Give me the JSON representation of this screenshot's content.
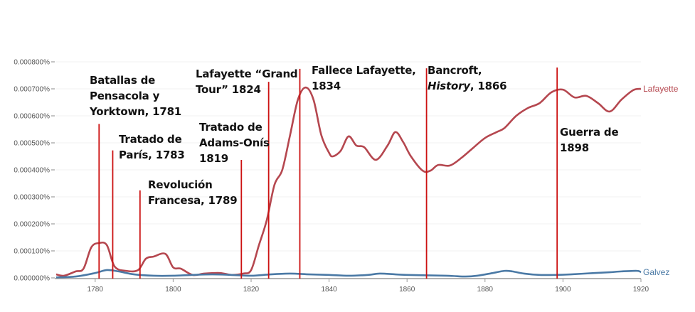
{
  "chart_data": {
    "type": "line",
    "title": "",
    "xlabel": "",
    "ylabel": "",
    "xlim": [
      1770,
      1920
    ],
    "ylim": [
      0,
      0.0008
    ],
    "grid": true,
    "x_ticks": [
      "1780",
      "1800",
      "1820",
      "1840",
      "1860",
      "1880",
      "1900",
      "1920"
    ],
    "x_tick_values": [
      1780,
      1800,
      1820,
      1840,
      1860,
      1880,
      1900,
      1920
    ],
    "y_ticks": [
      "0.000000%",
      "0.000100%",
      "0.000200%",
      "0.000300%",
      "0.000400%",
      "0.000500%",
      "0.000600%",
      "0.000700%",
      "0.000800%"
    ],
    "y_tick_values": [
      0,
      0.0001,
      0.0002,
      0.0003,
      0.0004,
      0.0005,
      0.0006,
      0.0007,
      0.0008
    ],
    "legend_placement": "line-end labels (right)",
    "series": [
      {
        "name": "Lafayette",
        "color": "#b5474f",
        "points": [
          [
            1770,
            1.3e-05
          ],
          [
            1772,
            8e-06
          ],
          [
            1775,
            2.4e-05
          ],
          [
            1777,
            3.4e-05
          ],
          [
            1779,
            0.000113
          ],
          [
            1781,
            0.000129
          ],
          [
            1783,
            0.000121
          ],
          [
            1785,
            4.2e-05
          ],
          [
            1788,
            2.6e-05
          ],
          [
            1791,
            2.9e-05
          ],
          [
            1793,
            7.1e-05
          ],
          [
            1795,
            7.9e-05
          ],
          [
            1798,
            8.9e-05
          ],
          [
            1800,
            3.9e-05
          ],
          [
            1802,
            3.4e-05
          ],
          [
            1805,
            1.1e-05
          ],
          [
            1808,
            1.6e-05
          ],
          [
            1812,
            1.8e-05
          ],
          [
            1815,
            1.1e-05
          ],
          [
            1818,
            1.6e-05
          ],
          [
            1820,
            2.9e-05
          ],
          [
            1822,
            0.000121
          ],
          [
            1824,
            0.000213
          ],
          [
            1826,
            0.000345
          ],
          [
            1828,
            0.0004
          ],
          [
            1830,
            0.000529
          ],
          [
            1832,
            0.00066
          ],
          [
            1834,
            0.000705
          ],
          [
            1836,
            0.00066
          ],
          [
            1838,
            0.000529
          ],
          [
            1840,
            0.000463
          ],
          [
            1841,
            0.00045
          ],
          [
            1843,
            0.000471
          ],
          [
            1845,
            0.000524
          ],
          [
            1847,
            0.00049
          ],
          [
            1849,
            0.000484
          ],
          [
            1852,
            0.000437
          ],
          [
            1855,
            0.00049
          ],
          [
            1857,
            0.00054
          ],
          [
            1859,
            0.000503
          ],
          [
            1861,
            0.00045
          ],
          [
            1864,
            0.000397
          ],
          [
            1866,
            0.000397
          ],
          [
            1868,
            0.000418
          ],
          [
            1871,
            0.000416
          ],
          [
            1874,
            0.000445
          ],
          [
            1877,
            0.000482
          ],
          [
            1880,
            0.000518
          ],
          [
            1883,
            0.00054
          ],
          [
            1885,
            0.000555
          ],
          [
            1888,
            0.0006
          ],
          [
            1891,
            0.000629
          ],
          [
            1894,
            0.000647
          ],
          [
            1897,
            0.000687
          ],
          [
            1900,
            0.000697
          ],
          [
            1903,
            0.000668
          ],
          [
            1906,
            0.000674
          ],
          [
            1909,
            0.000647
          ],
          [
            1912,
            0.000616
          ],
          [
            1915,
            0.00066
          ],
          [
            1918,
            0.000695
          ],
          [
            1920,
            0.0007
          ]
        ]
      },
      {
        "name": "Galvez",
        "color": "#4a79a5",
        "points": [
          [
            1770,
            2e-06
          ],
          [
            1775,
            5e-06
          ],
          [
            1780,
            1.8e-05
          ],
          [
            1783,
            2.9e-05
          ],
          [
            1786,
            2.4e-05
          ],
          [
            1790,
            1.3e-05
          ],
          [
            1795,
            8e-06
          ],
          [
            1800,
            8e-06
          ],
          [
            1805,
            1.1e-05
          ],
          [
            1810,
            1.3e-05
          ],
          [
            1815,
            1.1e-05
          ],
          [
            1820,
            8e-06
          ],
          [
            1825,
            1.3e-05
          ],
          [
            1830,
            1.6e-05
          ],
          [
            1835,
            1.3e-05
          ],
          [
            1840,
            1.1e-05
          ],
          [
            1845,
            8e-06
          ],
          [
            1850,
            1.1e-05
          ],
          [
            1853,
            1.6e-05
          ],
          [
            1857,
            1.3e-05
          ],
          [
            1860,
            1.1e-05
          ],
          [
            1870,
            8e-06
          ],
          [
            1875,
            5e-06
          ],
          [
            1878,
            8e-06
          ],
          [
            1882,
            1.8e-05
          ],
          [
            1885,
            2.6e-05
          ],
          [
            1887,
            2.4e-05
          ],
          [
            1890,
            1.6e-05
          ],
          [
            1894,
            1.1e-05
          ],
          [
            1898,
            1.1e-05
          ],
          [
            1902,
            1.3e-05
          ],
          [
            1908,
            1.8e-05
          ],
          [
            1912,
            2.1e-05
          ],
          [
            1915,
            2.4e-05
          ],
          [
            1919,
            2.6e-05
          ],
          [
            1920,
            2.1e-05
          ]
        ]
      }
    ],
    "annotation_color": "#cc1111",
    "annotations": [
      {
        "year": 1781,
        "line_top": 0.00057,
        "lines": [
          "Batallas de",
          "Pensacola y",
          "Yorktown, 1781"
        ]
      },
      {
        "year": 1784.5,
        "line_top": 0.000472,
        "lines": [
          "Tratado de",
          "París, 1783"
        ]
      },
      {
        "year": 1791.5,
        "line_top": 0.000324,
        "lines": [
          "Revolución",
          "Francesa, 1789"
        ]
      },
      {
        "year": 1817.5,
        "line_top": 0.000437,
        "lines": [
          "Tratado de",
          "Adams-Onís",
          "1819"
        ]
      },
      {
        "year": 1824.5,
        "line_top": 0.000726,
        "lines": [
          "Lafayette “Grand",
          "Tour” 1824"
        ]
      },
      {
        "year": 1832.5,
        "line_top": 0.000774,
        "lines": [
          "Fallece Lafayette,",
          "1834"
        ]
      },
      {
        "year": 1865,
        "line_top": 0.000776,
        "lines": [
          "Bancroft,",
          "History",
          ", 1866"
        ]
      },
      {
        "year": 1898.5,
        "line_top": 0.000779,
        "lines": [
          "Guerra de",
          "1898"
        ]
      }
    ]
  }
}
